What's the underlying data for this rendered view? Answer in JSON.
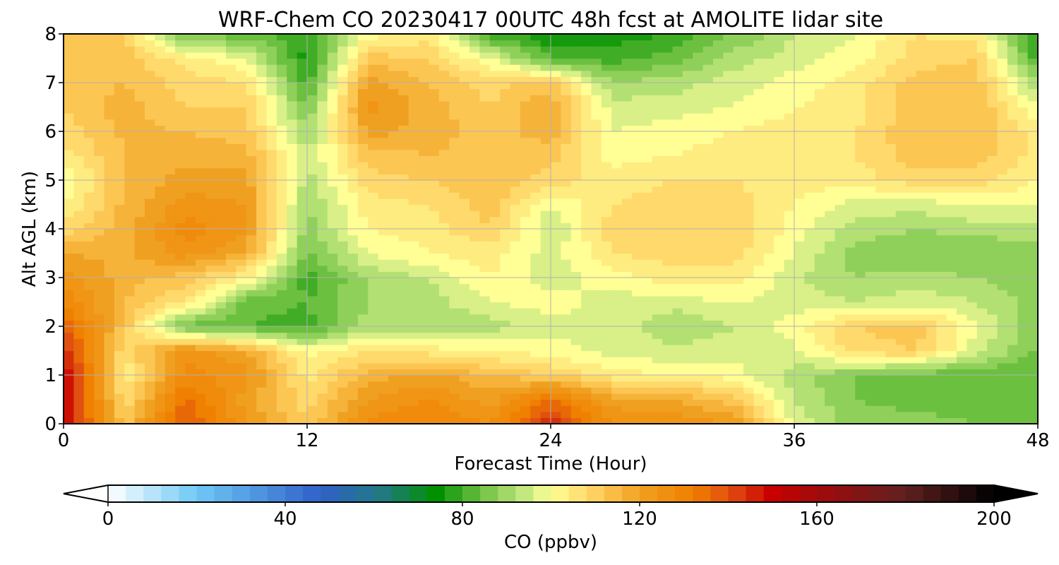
{
  "chart_data": {
    "type": "heatmap",
    "title": "WRF-Chem CO  20230417 00UTC 48h fcst at AMOLITE lidar site",
    "xlabel": "Forecast Time (Hour)",
    "ylabel": "Alt AGL (km)",
    "xlim": [
      0,
      48
    ],
    "ylim": [
      0,
      8
    ],
    "x_ticks": [
      0,
      12,
      24,
      36,
      48
    ],
    "y_ticks": [
      0,
      1,
      2,
      3,
      4,
      5,
      6,
      7,
      8
    ],
    "grid": true,
    "x": [
      0,
      3,
      6,
      9,
      12,
      15,
      18,
      21,
      24,
      27,
      30,
      33,
      36,
      39,
      42,
      45,
      48
    ],
    "y": [
      0,
      0.5,
      1,
      1.5,
      2,
      2.5,
      3,
      3.5,
      4,
      4.5,
      5,
      5.5,
      6,
      6.5,
      7,
      7.5,
      8
    ],
    "z": [
      [
        150,
        112,
        140,
        122,
        110,
        128,
        130,
        126,
        145,
        126,
        125,
        122,
        97,
        88,
        88,
        86,
        85
      ],
      [
        152,
        107,
        135,
        120,
        108,
        122,
        126,
        120,
        134,
        120,
        118,
        112,
        94,
        86,
        84,
        83,
        83
      ],
      [
        152,
        102,
        128,
        124,
        104,
        116,
        120,
        114,
        110,
        104,
        102,
        100,
        92,
        86,
        84,
        82,
        82
      ],
      [
        145,
        107,
        124,
        118,
        100,
        106,
        104,
        102,
        100,
        96,
        95,
        96,
        97,
        108,
        110,
        96,
        85
      ],
      [
        138,
        112,
        84,
        82,
        80,
        92,
        90,
        92,
        96,
        98,
        90,
        94,
        100,
        110,
        112,
        98,
        86
      ],
      [
        130,
        114,
        106,
        84,
        82,
        90,
        92,
        98,
        100,
        96,
        96,
        98,
        96,
        94,
        96,
        94,
        88
      ],
      [
        124,
        116,
        112,
        102,
        80,
        90,
        94,
        102,
        96,
        100,
        104,
        104,
        95,
        90,
        92,
        90,
        87
      ],
      [
        118,
        117,
        124,
        118,
        85,
        98,
        102,
        104,
        96,
        106,
        108,
        108,
        98,
        88,
        86,
        86,
        88
      ],
      [
        108,
        116,
        128,
        122,
        88,
        102,
        104,
        110,
        94,
        108,
        110,
        110,
        100,
        92,
        90,
        92,
        92
      ],
      [
        102,
        115,
        124,
        122,
        90,
        104,
        106,
        112,
        98,
        106,
        108,
        108,
        102,
        96,
        96,
        98,
        98
      ],
      [
        98,
        114,
        120,
        120,
        92,
        108,
        110,
        114,
        108,
        104,
        106,
        106,
        104,
        104,
        108,
        108,
        102
      ],
      [
        104,
        114,
        116,
        116,
        94,
        112,
        114,
        112,
        112,
        100,
        102,
        104,
        104,
        106,
        112,
        112,
        104
      ],
      [
        108,
        115,
        114,
        112,
        90,
        120,
        116,
        112,
        116,
        98,
        100,
        102,
        104,
        106,
        114,
        114,
        104
      ],
      [
        110,
        116,
        110,
        110,
        86,
        124,
        116,
        110,
        118,
        96,
        96,
        98,
        102,
        104,
        112,
        114,
        98
      ],
      [
        112,
        114,
        108,
        106,
        80,
        120,
        114,
        108,
        112,
        90,
        92,
        96,
        100,
        104,
        112,
        112,
        90
      ],
      [
        112,
        112,
        104,
        98,
        76,
        112,
        110,
        98,
        82,
        80,
        84,
        92,
        96,
        100,
        108,
        110,
        80
      ],
      [
        110,
        110,
        84,
        84,
        78,
        100,
        104,
        80,
        74,
        76,
        78,
        86,
        94,
        98,
        106,
        104,
        76
      ]
    ],
    "colorbar": {
      "label": "CO  (ppbv)",
      "min": 0,
      "max": 200,
      "ticks": [
        0,
        40,
        80,
        120,
        160,
        200
      ],
      "extend": "both",
      "colors": [
        {
          "v": 0,
          "c": "#ffffff"
        },
        {
          "v": 20,
          "c": "#6ec8f5"
        },
        {
          "v": 48,
          "c": "#3060c8"
        },
        {
          "v": 62,
          "c": "#207a80"
        },
        {
          "v": 74,
          "c": "#009000"
        },
        {
          "v": 84,
          "c": "#6cc040"
        },
        {
          "v": 94,
          "c": "#c4e880"
        },
        {
          "v": 100,
          "c": "#ffff96"
        },
        {
          "v": 110,
          "c": "#ffd060"
        },
        {
          "v": 120,
          "c": "#f0a020"
        },
        {
          "v": 132,
          "c": "#f08000"
        },
        {
          "v": 140,
          "c": "#e05010"
        },
        {
          "v": 150,
          "c": "#c80000"
        },
        {
          "v": 165,
          "c": "#901010"
        },
        {
          "v": 180,
          "c": "#602020"
        },
        {
          "v": 200,
          "c": "#000000"
        }
      ]
    }
  }
}
